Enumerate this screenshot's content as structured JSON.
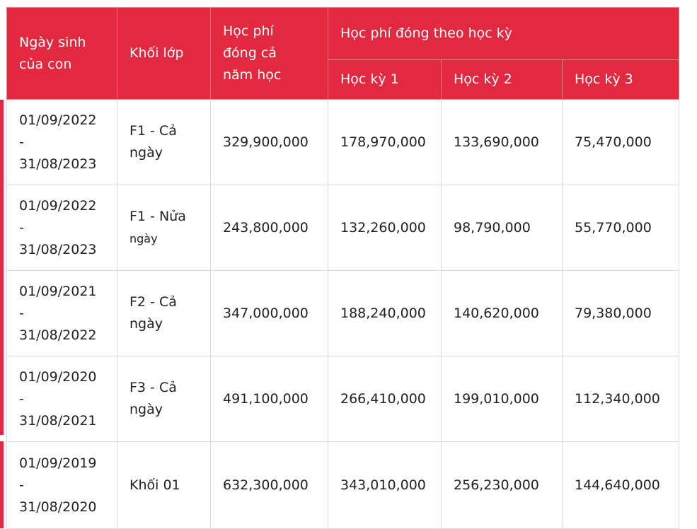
{
  "table": {
    "headers": {
      "birth": "Ngày sinh của con",
      "grade": "Khối lớp",
      "annual": "Học phí đóng cả năm học",
      "semester_group": "Học phí đóng theo học kỳ",
      "sem1": "Học kỳ 1",
      "sem2": "Học kỳ 2",
      "sem3": "Học kỳ 3"
    },
    "rows": [
      {
        "birth_from": "01/09/2022",
        "sep": "-",
        "birth_to": "31/08/2023",
        "grade_a": "F1 - Cả ngày",
        "grade_b": "",
        "annual": "329,900,000",
        "sem1": "178,970,000",
        "sem2": "133,690,000",
        "sem3": "75,470,000"
      },
      {
        "birth_from": "01/09/2022",
        "sep": "-",
        "birth_to": "31/08/2023",
        "grade_a": "F1 - Nửa",
        "grade_b": "ngày",
        "annual": "243,800,000",
        "sem1": "132,260,000",
        "sem2": "98,790,000",
        "sem3": "55,770,000"
      },
      {
        "birth_from": "01/09/2021",
        "sep": "-",
        "birth_to": "31/08/2022",
        "grade_a": "F2 - Cả ngày",
        "grade_b": "",
        "annual": "347,000,000",
        "sem1": "188,240,000",
        "sem2": "140,620,000",
        "sem3": "79,380,000"
      },
      {
        "birth_from": "01/09/2020",
        "sep": "-",
        "birth_to": "31/08/2021",
        "grade_a": "F3 - Cả ngày",
        "grade_b": "",
        "annual": "491,100,000",
        "sem1": "266,410,000",
        "sem2": "199,010,000",
        "sem3": "112,340,000"
      },
      {
        "birth_from": "01/09/2019",
        "sep": "-",
        "birth_to": "31/08/2020",
        "grade_a": "Khối 01",
        "grade_b": "",
        "annual": "632,300,000",
        "sem1": "343,010,000",
        "sem2": "256,230,000",
        "sem3": "144,640,000"
      }
    ]
  },
  "colors": {
    "header_bg": "#e2293f",
    "header_text": "#ffffff",
    "border": "#d9d9d9",
    "accent_bar": "#e2293f"
  }
}
